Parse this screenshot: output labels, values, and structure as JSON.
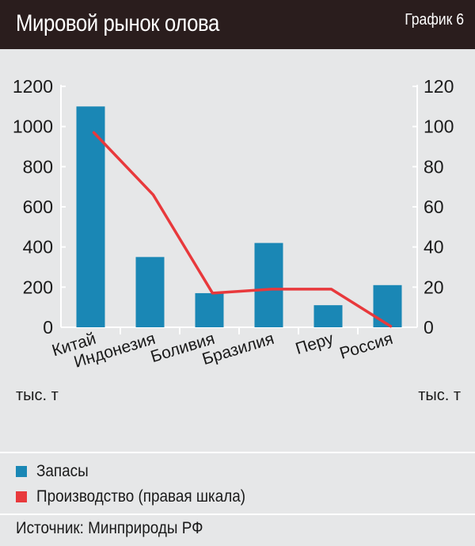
{
  "header": {
    "title": "Мировой рынок олова",
    "badge": "График 6"
  },
  "chart_data": {
    "type": "bar",
    "categories": [
      "Китай",
      "Индонезия",
      "Боливия",
      "Бразилия",
      "Перу",
      "Россия"
    ],
    "y_left_ticks": [
      "0",
      "200",
      "400",
      "600",
      "800",
      "1000",
      "1200"
    ],
    "y_right_ticks": [
      "0",
      "20",
      "40",
      "60",
      "80",
      "100",
      "120"
    ],
    "ylim_left": [
      0,
      1200
    ],
    "ylim_right": [
      0,
      120
    ],
    "ylabel_left": "тыс. т",
    "ylabel_right": "тыс. т",
    "grid": false,
    "legend_position": "bottom",
    "series": [
      {
        "name": "Запасы",
        "type": "bar",
        "axis": "left",
        "color": "#1a87b5",
        "values": [
          1100,
          350,
          170,
          420,
          110,
          210
        ]
      },
      {
        "name": "Производство (правая шкала)",
        "type": "line",
        "axis": "right",
        "color": "#e8393c",
        "values": [
          97,
          66,
          17,
          19,
          19,
          0.5
        ]
      }
    ]
  },
  "legend": [
    {
      "label": "Запасы",
      "color": "#1a87b5"
    },
    {
      "label": "Производство (правая шкала)",
      "color": "#e8393c"
    }
  ],
  "footer": {
    "source": "Источник: Минприроды РФ"
  }
}
